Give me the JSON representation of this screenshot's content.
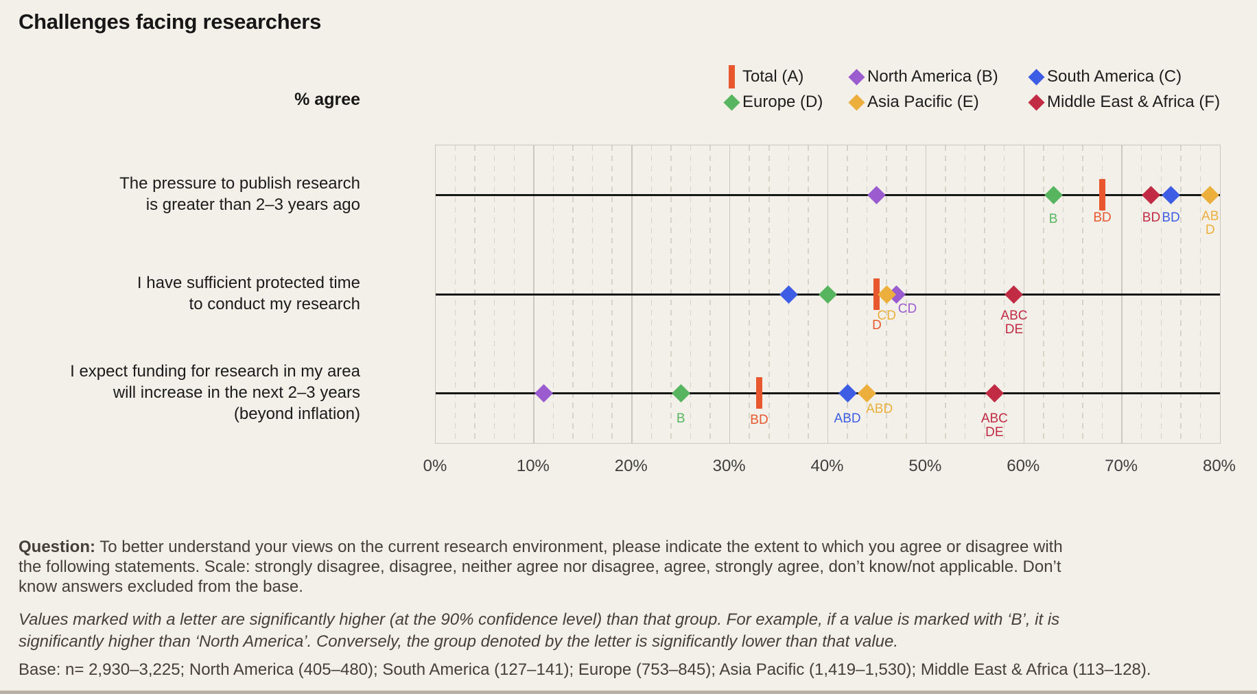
{
  "title": "Challenges facing researchers",
  "footer": {
    "question_label": "Question:",
    "question_text": " To better understand your views on the current research environment, please indicate the extent to which you agree or disagree with the following statements. Scale: strongly disagree, disagree, neither agree nor disagree, agree, strongly agree, don’t know/not applicable. Don’t know answers excluded from the base.",
    "significance_note": "Values marked with a letter are significantly higher (at the 90% confidence level) than that group. For example, if a value is marked with ‘B’, it is significantly higher than ‘North America’. Conversely, the group denoted by the letter is significantly lower than that value.",
    "base_note": "Base: n= 2,930–3,225; North America (405–480); South America (127–141); Europe (753–845); Asia Pacific (1,419–1,530); Middle East & Africa (113–128)."
  },
  "chart_data": {
    "type": "scatter",
    "title": "Challenges facing researchers",
    "ylabel": "% agree",
    "x_axis": {
      "min": 0,
      "max": 80,
      "tick_step": 10,
      "minor_step": 2,
      "tick_labels": [
        "0%",
        "10%",
        "20%",
        "30%",
        "40%",
        "50%",
        "60%",
        "70%",
        "80%"
      ]
    },
    "groups": [
      {
        "key": "A",
        "label": "Total (A)",
        "color": "#e8572e",
        "marker": "bar",
        "legend_row": 0,
        "legend_col": 0
      },
      {
        "key": "B",
        "label": "North America (B)",
        "color": "#9b5cd0",
        "marker": "diamond",
        "legend_row": 0,
        "legend_col": 1
      },
      {
        "key": "C",
        "label": "South America (C)",
        "color": "#3d5de5",
        "marker": "diamond",
        "legend_row": 0,
        "legend_col": 2
      },
      {
        "key": "D",
        "label": "Europe (D)",
        "color": "#58b55f",
        "marker": "diamond",
        "legend_row": 1,
        "legend_col": 0
      },
      {
        "key": "E",
        "label": "Asia Pacific (E)",
        "color": "#ecaf3c",
        "marker": "diamond",
        "legend_row": 1,
        "legend_col": 1
      },
      {
        "key": "F",
        "label": "Middle East & Africa (F)",
        "color": "#c12b44",
        "marker": "diamond",
        "legend_row": 1,
        "legend_col": 2
      }
    ],
    "statements": [
      {
        "label_lines": [
          "The pressure to publish research",
          "is greater than 2–3 years ago"
        ],
        "values": {
          "A": 68,
          "B": 45,
          "C": 75,
          "D": 63,
          "E": 79,
          "F": 73
        },
        "sig": {
          "A": [
            "BD"
          ],
          "C": [
            "BD"
          ],
          "D": [
            "B"
          ],
          "E": [
            "AB",
            "D"
          ],
          "F": [
            "BD"
          ]
        },
        "sig_dy": {
          "A": 24,
          "C": 24,
          "D": 26,
          "E": 22,
          "F": 24
        }
      },
      {
        "label_lines": [
          "I have sufficient protected time",
          "to conduct my research"
        ],
        "values": {
          "A": 45,
          "B": 47,
          "C": 36,
          "D": 40,
          "E": 46,
          "F": 59
        },
        "sig": {
          "A": [
            "D"
          ],
          "B": [
            "CD"
          ],
          "E": [
            "CD"
          ],
          "F": [
            "ABC",
            "DE"
          ]
        },
        "sig_dy": {
          "A": 36,
          "B": 12,
          "E": 22,
          "F": 22
        },
        "sig_dx": {
          "B": 16
        }
      },
      {
        "label_lines": [
          "I expect funding for research in my area",
          "will increase in the next 2–3 years",
          "(beyond inflation)"
        ],
        "values": {
          "A": 33,
          "B": 11,
          "C": 42,
          "D": 25,
          "E": 44,
          "F": 57
        },
        "sig": {
          "A": [
            "BD"
          ],
          "C": [
            "ABD"
          ],
          "D": [
            "B"
          ],
          "E": [
            "ABD"
          ],
          "F": [
            "ABC",
            "DE"
          ]
        },
        "sig_dy": {
          "A": 30,
          "C": 28,
          "D": 28,
          "E": 14,
          "F": 28
        },
        "sig_dx": {
          "E": 18
        }
      }
    ]
  }
}
